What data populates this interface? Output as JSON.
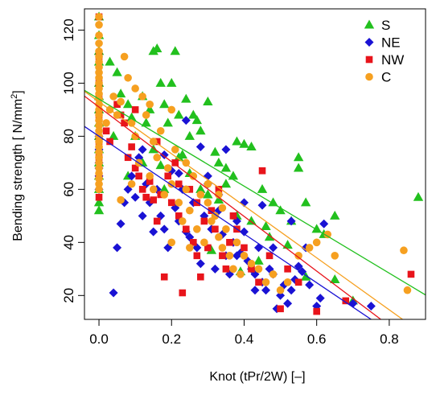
{
  "chart_data": {
    "type": "scatter",
    "title": "",
    "xlabel": "Knot (tPr/2W) [–]",
    "ylabel_main": "Bending strength [ N/mm",
    "ylabel_sup": "2",
    "ylabel_end": "]",
    "xlim": [
      -0.04,
      0.9
    ],
    "ylim": [
      11,
      128
    ],
    "xticks": [
      0.0,
      0.2,
      0.4,
      0.6,
      0.8
    ],
    "xtick_labels": [
      "0.0",
      "0.2",
      "0.4",
      "0.6",
      "0.8"
    ],
    "yticks": [
      20,
      40,
      60,
      80,
      100,
      120
    ],
    "ytick_labels": [
      "20",
      "40",
      "60",
      "80",
      "100",
      "120"
    ],
    "grid": false,
    "legend_position": "top-right",
    "series": [
      {
        "name": "S",
        "marker": "triangle",
        "color": "#22c01e",
        "fit": {
          "intercept": 94,
          "slope": -82
        },
        "points": [
          [
            0,
            125
          ],
          [
            0,
            118
          ],
          [
            0,
            112
          ],
          [
            0,
            108
          ],
          [
            0,
            100
          ],
          [
            0,
            95
          ],
          [
            0,
            90
          ],
          [
            0,
            85
          ],
          [
            0,
            80
          ],
          [
            0,
            75
          ],
          [
            0,
            70
          ],
          [
            0,
            65
          ],
          [
            0,
            60
          ],
          [
            0,
            55
          ],
          [
            0,
            52
          ],
          [
            0.03,
            108
          ],
          [
            0.05,
            104
          ],
          [
            0.06,
            96
          ],
          [
            0.08,
            92
          ],
          [
            0.09,
            87
          ],
          [
            0.1,
            80
          ],
          [
            0.12,
            95
          ],
          [
            0.14,
            90
          ],
          [
            0.15,
            112
          ],
          [
            0.16,
            113
          ],
          [
            0.17,
            100
          ],
          [
            0.18,
            92
          ],
          [
            0.19,
            85
          ],
          [
            0.2,
            100
          ],
          [
            0.21,
            112
          ],
          [
            0.22,
            88
          ],
          [
            0.24,
            94
          ],
          [
            0.25,
            80
          ],
          [
            0.26,
            88
          ],
          [
            0.27,
            86
          ],
          [
            0.28,
            82
          ],
          [
            0.3,
            93
          ],
          [
            0.32,
            74
          ],
          [
            0.33,
            70
          ],
          [
            0.35,
            68
          ],
          [
            0.37,
            65
          ],
          [
            0.38,
            78
          ],
          [
            0.4,
            77
          ],
          [
            0.42,
            76
          ],
          [
            0.45,
            60
          ],
          [
            0.48,
            55
          ],
          [
            0.5,
            52
          ],
          [
            0.53,
            48
          ],
          [
            0.55,
            68
          ],
          [
            0.57,
            55
          ],
          [
            0.6,
            45
          ],
          [
            0.62,
            43
          ],
          [
            0.65,
            26
          ],
          [
            0.65,
            50
          ],
          [
            0.7,
            18
          ],
          [
            0.88,
            57
          ],
          [
            0.04,
            80
          ],
          [
            0.08,
            65
          ],
          [
            0.12,
            70
          ],
          [
            0.15,
            75
          ],
          [
            0.18,
            60
          ],
          [
            0.22,
            72
          ],
          [
            0.25,
            66
          ],
          [
            0.3,
            58
          ],
          [
            0.35,
            62
          ],
          [
            0.38,
            50
          ],
          [
            0.42,
            48
          ],
          [
            0.47,
            42
          ],
          [
            0.52,
            39
          ],
          [
            0.57,
            27
          ],
          [
            0.13,
            85
          ],
          [
            0.28,
            60
          ],
          [
            0.33,
            56
          ],
          [
            0.46,
            46
          ],
          [
            0.55,
            72
          ],
          [
            0.17,
            69
          ],
          [
            0.23,
            73
          ],
          [
            0.31,
            37
          ],
          [
            0.39,
            29
          ],
          [
            0.44,
            33
          ]
        ]
      },
      {
        "name": "NE",
        "marker": "diamond",
        "color": "#1a12d4",
        "fit": {
          "intercept": 80,
          "slope": -92
        },
        "points": [
          [
            0,
            80
          ],
          [
            0,
            75
          ],
          [
            0,
            70
          ],
          [
            0,
            68
          ],
          [
            0,
            65
          ],
          [
            0,
            60
          ],
          [
            0.04,
            21
          ],
          [
            0.05,
            38
          ],
          [
            0.06,
            47
          ],
          [
            0.07,
            55
          ],
          [
            0.08,
            60
          ],
          [
            0.09,
            65
          ],
          [
            0.1,
            57
          ],
          [
            0.11,
            72
          ],
          [
            0.12,
            50
          ],
          [
            0.13,
            62
          ],
          [
            0.14,
            55
          ],
          [
            0.15,
            44
          ],
          [
            0.16,
            60
          ],
          [
            0.17,
            50
          ],
          [
            0.18,
            45
          ],
          [
            0.19,
            38
          ],
          [
            0.2,
            67
          ],
          [
            0.21,
            53
          ],
          [
            0.22,
            48
          ],
          [
            0.23,
            60
          ],
          [
            0.24,
            44
          ],
          [
            0.25,
            42
          ],
          [
            0.26,
            55
          ],
          [
            0.27,
            38
          ],
          [
            0.28,
            32
          ],
          [
            0.29,
            50
          ],
          [
            0.3,
            62
          ],
          [
            0.31,
            45
          ],
          [
            0.32,
            30
          ],
          [
            0.33,
            52
          ],
          [
            0.34,
            43
          ],
          [
            0.35,
            35
          ],
          [
            0.36,
            28
          ],
          [
            0.37,
            40
          ],
          [
            0.38,
            48
          ],
          [
            0.39,
            36
          ],
          [
            0.4,
            44
          ],
          [
            0.41,
            33
          ],
          [
            0.42,
            30
          ],
          [
            0.43,
            28
          ],
          [
            0.44,
            38
          ],
          [
            0.45,
            25
          ],
          [
            0.46,
            22
          ],
          [
            0.47,
            30
          ],
          [
            0.48,
            28
          ],
          [
            0.49,
            15
          ],
          [
            0.5,
            20
          ],
          [
            0.51,
            24
          ],
          [
            0.52,
            17
          ],
          [
            0.53,
            22
          ],
          [
            0.54,
            26
          ],
          [
            0.55,
            31
          ],
          [
            0.56,
            29
          ],
          [
            0.58,
            24
          ],
          [
            0.6,
            16
          ],
          [
            0.61,
            19
          ],
          [
            0.62,
            47
          ],
          [
            0.7,
            17
          ],
          [
            0.75,
            16
          ],
          [
            0.12,
            75
          ],
          [
            0.18,
            73
          ],
          [
            0.24,
            86
          ],
          [
            0.3,
            65
          ],
          [
            0.35,
            75
          ],
          [
            0.4,
            55
          ],
          [
            0.45,
            54
          ],
          [
            0.28,
            76
          ],
          [
            0.22,
            66
          ],
          [
            0.33,
            58
          ],
          [
            0.38,
            35
          ],
          [
            0.43,
            22
          ],
          [
            0.48,
            38
          ],
          [
            0.53,
            48
          ],
          [
            0.57,
            38
          ]
        ]
      },
      {
        "name": "NW",
        "marker": "square",
        "color": "#e8141b",
        "fit": {
          "intercept": 91,
          "slope": -103
        },
        "points": [
          [
            0,
            125
          ],
          [
            0,
            110
          ],
          [
            0,
            100
          ],
          [
            0,
            95
          ],
          [
            0,
            88
          ],
          [
            0,
            78
          ],
          [
            0,
            72
          ],
          [
            0,
            65
          ],
          [
            0,
            57
          ],
          [
            0.02,
            82
          ],
          [
            0.03,
            78
          ],
          [
            0.05,
            92
          ],
          [
            0.06,
            88
          ],
          [
            0.07,
            85
          ],
          [
            0.08,
            72
          ],
          [
            0.09,
            76
          ],
          [
            0.1,
            68
          ],
          [
            0.11,
            65
          ],
          [
            0.12,
            60
          ],
          [
            0.13,
            57
          ],
          [
            0.14,
            63
          ],
          [
            0.15,
            56
          ],
          [
            0.16,
            48
          ],
          [
            0.17,
            58
          ],
          [
            0.18,
            27
          ],
          [
            0.19,
            65
          ],
          [
            0.2,
            55
          ],
          [
            0.21,
            70
          ],
          [
            0.22,
            50
          ],
          [
            0.23,
            21
          ],
          [
            0.24,
            45
          ],
          [
            0.25,
            60
          ],
          [
            0.26,
            40
          ],
          [
            0.27,
            55
          ],
          [
            0.28,
            27
          ],
          [
            0.29,
            48
          ],
          [
            0.3,
            38
          ],
          [
            0.31,
            52
          ],
          [
            0.32,
            45
          ],
          [
            0.33,
            60
          ],
          [
            0.34,
            35
          ],
          [
            0.35,
            30
          ],
          [
            0.36,
            40
          ],
          [
            0.37,
            50
          ],
          [
            0.38,
            45
          ],
          [
            0.4,
            38
          ],
          [
            0.42,
            30
          ],
          [
            0.44,
            25
          ],
          [
            0.45,
            67
          ],
          [
            0.47,
            35
          ],
          [
            0.5,
            15
          ],
          [
            0.52,
            30
          ],
          [
            0.55,
            25
          ],
          [
            0.6,
            14
          ],
          [
            0.68,
            18
          ],
          [
            0.86,
            28
          ],
          [
            0.1,
            90
          ],
          [
            0.16,
            78
          ],
          [
            0.22,
            62
          ],
          [
            0.27,
            35
          ]
        ]
      },
      {
        "name": "C",
        "marker": "circle",
        "color": "#f6a020",
        "fit": {
          "intercept": 93,
          "slope": -98
        },
        "points": [
          [
            0,
            125
          ],
          [
            0,
            122
          ],
          [
            0,
            118
          ],
          [
            0,
            115
          ],
          [
            0,
            112
          ],
          [
            0,
            110
          ],
          [
            0,
            108
          ],
          [
            0,
            106
          ],
          [
            0,
            104
          ],
          [
            0,
            102
          ],
          [
            0,
            100
          ],
          [
            0,
            98
          ],
          [
            0,
            96
          ],
          [
            0,
            94
          ],
          [
            0,
            92
          ],
          [
            0,
            90
          ],
          [
            0,
            88
          ],
          [
            0,
            86
          ],
          [
            0,
            84
          ],
          [
            0,
            82
          ],
          [
            0,
            80
          ],
          [
            0,
            78
          ],
          [
            0,
            76
          ],
          [
            0,
            74
          ],
          [
            0,
            72
          ],
          [
            0,
            70
          ],
          [
            0,
            68
          ],
          [
            0,
            66
          ],
          [
            0,
            64
          ],
          [
            0,
            62
          ],
          [
            0,
            60
          ],
          [
            0.02,
            85
          ],
          [
            0.03,
            90
          ],
          [
            0.04,
            95
          ],
          [
            0.05,
            88
          ],
          [
            0.06,
            93
          ],
          [
            0.07,
            110
          ],
          [
            0.08,
            102
          ],
          [
            0.09,
            85
          ],
          [
            0.1,
            80
          ],
          [
            0.11,
            70
          ],
          [
            0.12,
            95
          ],
          [
            0.13,
            88
          ],
          [
            0.14,
            65
          ],
          [
            0.15,
            78
          ],
          [
            0.16,
            72
          ],
          [
            0.17,
            82
          ],
          [
            0.18,
            58
          ],
          [
            0.19,
            68
          ],
          [
            0.2,
            62
          ],
          [
            0.21,
            75
          ],
          [
            0.22,
            55
          ],
          [
            0.23,
            48
          ],
          [
            0.24,
            60
          ],
          [
            0.25,
            52
          ],
          [
            0.26,
            65
          ],
          [
            0.27,
            45
          ],
          [
            0.28,
            58
          ],
          [
            0.29,
            40
          ],
          [
            0.3,
            55
          ],
          [
            0.31,
            48
          ],
          [
            0.32,
            50
          ],
          [
            0.33,
            42
          ],
          [
            0.34,
            38
          ],
          [
            0.35,
            45
          ],
          [
            0.36,
            35
          ],
          [
            0.37,
            30
          ],
          [
            0.38,
            40
          ],
          [
            0.39,
            28
          ],
          [
            0.4,
            35
          ],
          [
            0.42,
            32
          ],
          [
            0.44,
            30
          ],
          [
            0.46,
            25
          ],
          [
            0.48,
            28
          ],
          [
            0.5,
            22
          ],
          [
            0.52,
            25
          ],
          [
            0.55,
            35
          ],
          [
            0.58,
            38
          ],
          [
            0.6,
            40
          ],
          [
            0.63,
            43
          ],
          [
            0.65,
            35
          ],
          [
            0.84,
            37
          ],
          [
            0.85,
            22
          ],
          [
            0.1,
            98
          ],
          [
            0.14,
            92
          ],
          [
            0.2,
            90
          ],
          [
            0.24,
            70
          ],
          [
            0.3,
            62
          ],
          [
            0.34,
            53
          ],
          [
            0.2,
            40
          ],
          [
            0.25,
            38
          ],
          [
            0.33,
            58
          ],
          [
            0.15,
            60
          ],
          [
            0.09,
            62
          ],
          [
            0.06,
            56
          ]
        ]
      }
    ]
  }
}
